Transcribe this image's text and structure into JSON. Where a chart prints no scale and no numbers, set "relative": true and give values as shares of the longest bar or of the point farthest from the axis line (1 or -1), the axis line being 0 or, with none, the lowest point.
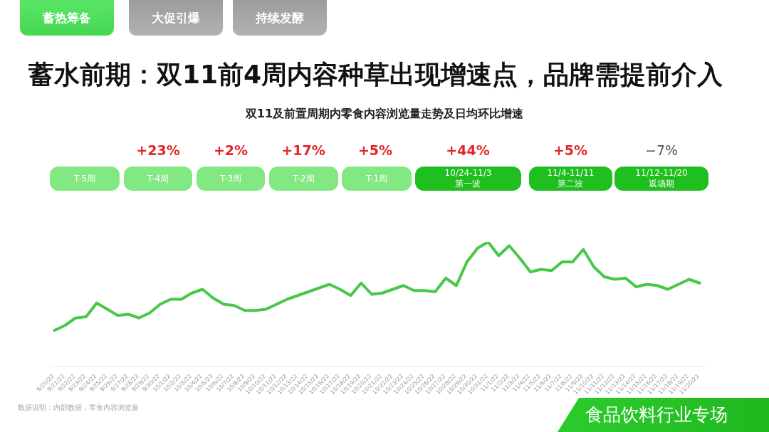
{
  "chart_data": {
    "type": "line",
    "title": "蓄水前期：双11前4周内容种草出现增速点，品牌需提前介入",
    "subtitle": "双11及前置周期内零食内容浏览量走势及日均环比增速",
    "categories": [
      "9/20/22",
      "9/21/22",
      "9/22/22",
      "9/23/22",
      "9/24/22",
      "9/25/22",
      "9/26/22",
      "9/27/22",
      "9/28/22",
      "9/29/22",
      "9/30/22",
      "10/1/22",
      "10/2/22",
      "10/3/22",
      "10/4/22",
      "10/5/22",
      "10/6/22",
      "10/7/22",
      "10/8/22",
      "10/9/22",
      "10/10/22",
      "10/11/22",
      "10/12/22",
      "10/13/22",
      "10/14/22",
      "10/15/22",
      "10/16/22",
      "10/17/22",
      "10/18/22",
      "10/19/22",
      "10/20/22",
      "10/21/22",
      "10/22/22",
      "10/23/22",
      "10/24/22",
      "10/25/22",
      "10/26/22",
      "10/27/22",
      "10/28/22",
      "10/29/22",
      "10/30/22",
      "10/31/22",
      "11/1/22",
      "11/2/22",
      "11/3/22",
      "11/4/22",
      "11/5/22",
      "11/6/22",
      "11/7/22",
      "11/8/22",
      "11/9/22",
      "11/10/22",
      "11/11/22",
      "11/12/22",
      "11/13/22",
      "11/14/22",
      "11/15/22",
      "11/16/22",
      "11/17/22",
      "11/18/22",
      "11/19/22",
      "11/20/22"
    ],
    "relative": true,
    "series": [
      {
        "color": "#48c848",
        "values": [
          0.29,
          0.33,
          0.39,
          0.4,
          0.51,
          0.46,
          0.41,
          0.42,
          0.39,
          0.43,
          0.5,
          0.54,
          0.54,
          0.59,
          0.62,
          0.55,
          0.5,
          0.49,
          0.45,
          0.45,
          0.46,
          0.5,
          0.54,
          0.57,
          0.6,
          0.63,
          0.66,
          0.62,
          0.57,
          0.67,
          0.58,
          0.59,
          0.62,
          0.65,
          0.61,
          0.61,
          0.6,
          0.71,
          0.65,
          0.84,
          0.95,
          1,
          0.89,
          0.97,
          0.87,
          0.76,
          0.78,
          0.77,
          0.84,
          0.84,
          0.94,
          0.8,
          0.72,
          0.7,
          0.71,
          0.64,
          0.66,
          0.65,
          0.62,
          0.66,
          0.7,
          0.67
        ]
      }
    ],
    "annotations": [
      "蓄热筹备",
      "大促引爆",
      "持续发酵",
      "+23%",
      "+2%",
      "+17%",
      "+5%",
      "+44%",
      "+5%",
      "−7%",
      "T-5周",
      "T-4周",
      "T-3周",
      "T-2周",
      "T-1周",
      "10/24-11/3\n第一波",
      "11/4-11/11\n第二波",
      "11/12-11/20\n返场期",
      "数据说明：内部数据，零食内容浏览量",
      "食品饮料行业专场"
    ]
  }
}
